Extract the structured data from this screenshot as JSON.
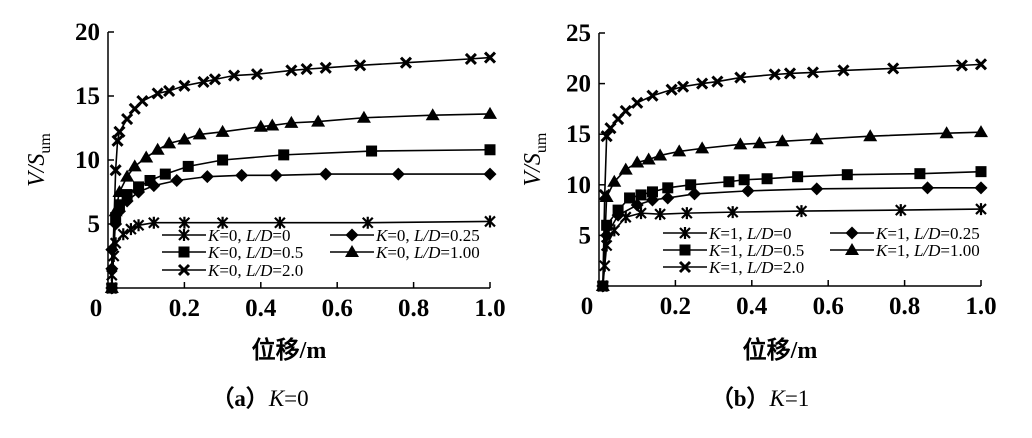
{
  "chart_data": [
    {
      "type": "line",
      "caption_prefix": "（a）",
      "caption_var": "K",
      "caption_val": "=0",
      "xlabel": "位移/m",
      "ylabel_main": "V/S",
      "ylabel_sub": "um",
      "xlim": [
        0,
        1.0
      ],
      "ylim": [
        0,
        20
      ],
      "xticks": [
        "0",
        "0.2",
        "0.4",
        "0.6",
        "0.8",
        "1.0"
      ],
      "yticks": [
        "5",
        "10",
        "15",
        "20"
      ],
      "grid": false,
      "legend_placement": "bottom-right",
      "series": [
        {
          "name": "K=0, L/D=0",
          "k": "=0, ",
          "ld": "=0",
          "marker": "asterisk",
          "x": [
            0.01,
            0.01,
            0.015,
            0.02,
            0.04,
            0.06,
            0.08,
            0.12,
            0.2,
            0.3,
            0.45,
            0.68,
            1.0
          ],
          "y": [
            0,
            1,
            2.5,
            3.5,
            4.2,
            4.6,
            4.9,
            5.1,
            5.1,
            5.1,
            5.1,
            5.1,
            5.2
          ]
        },
        {
          "name": "K=0, L/D=0.25",
          "k": "=0, ",
          "ld": "=0.25",
          "marker": "diamond",
          "x": [
            0.01,
            0.01,
            0.01,
            0.02,
            0.03,
            0.05,
            0.08,
            0.12,
            0.18,
            0.26,
            0.35,
            0.44,
            0.57,
            0.76,
            1.0
          ],
          "y": [
            0,
            1.5,
            3,
            5,
            6,
            6.8,
            7.5,
            8.0,
            8.4,
            8.7,
            8.8,
            8.8,
            8.9,
            8.9,
            8.9
          ]
        },
        {
          "name": "K=0, L/D=0.5",
          "k": "=0, ",
          "ld": "=0.5",
          "marker": "square",
          "x": [
            0.01,
            0.02,
            0.03,
            0.05,
            0.08,
            0.11,
            0.15,
            0.21,
            0.3,
            0.46,
            0.69,
            1.0
          ],
          "y": [
            0,
            5.5,
            6.5,
            7.3,
            7.9,
            8.4,
            8.9,
            9.5,
            10.0,
            10.4,
            10.7,
            10.8
          ]
        },
        {
          "name": "K=0, L/D=1.00",
          "k": "=0, ",
          "ld": "=1.00",
          "marker": "triangle",
          "x": [
            0.01,
            0.02,
            0.03,
            0.05,
            0.07,
            0.1,
            0.13,
            0.16,
            0.2,
            0.24,
            0.3,
            0.4,
            0.43,
            0.48,
            0.55,
            0.67,
            0.85,
            1.0
          ],
          "y": [
            0,
            6,
            7.5,
            8.7,
            9.5,
            10.2,
            10.8,
            11.3,
            11.6,
            12.0,
            12.2,
            12.6,
            12.7,
            12.9,
            13.0,
            13.3,
            13.5,
            13.6
          ]
        },
        {
          "name": "K=0, L/D=2.0",
          "k": "=0, ",
          "ld": "=2.0",
          "marker": "x",
          "x": [
            0.01,
            0.02,
            0.025,
            0.03,
            0.05,
            0.07,
            0.09,
            0.13,
            0.16,
            0.2,
            0.25,
            0.28,
            0.33,
            0.39,
            0.48,
            0.52,
            0.57,
            0.66,
            0.78,
            0.95,
            1.0
          ],
          "y": [
            0,
            9.2,
            11.5,
            12.2,
            13.2,
            14.0,
            14.6,
            15.2,
            15.4,
            15.8,
            16.1,
            16.3,
            16.6,
            16.7,
            17.0,
            17.1,
            17.2,
            17.4,
            17.6,
            17.9,
            18.0
          ]
        }
      ]
    },
    {
      "type": "line",
      "caption_prefix": "（b）",
      "caption_var": "K",
      "caption_val": "=1",
      "xlabel": "位移/m",
      "ylabel_main": "V/S",
      "ylabel_sub": "um",
      "xlim": [
        0,
        1.0
      ],
      "ylim": [
        0,
        25
      ],
      "xticks": [
        "0",
        "0.2",
        "0.4",
        "0.6",
        "0.8",
        "1.0"
      ],
      "yticks": [
        "5",
        "10",
        "15",
        "20",
        "25"
      ],
      "grid": false,
      "legend_placement": "bottom-right",
      "series": [
        {
          "name": "K=1, L/D=0",
          "k": "=1, ",
          "ld": "=0",
          "marker": "asterisk",
          "x": [
            0.01,
            0.015,
            0.02,
            0.04,
            0.07,
            0.11,
            0.16,
            0.23,
            0.35,
            0.53,
            0.79,
            1.0
          ],
          "y": [
            0,
            2,
            4,
            5.5,
            6.8,
            7.2,
            7.1,
            7.2,
            7.3,
            7.4,
            7.5,
            7.6
          ]
        },
        {
          "name": "K=1, L/D=0.25",
          "k": "=1, ",
          "ld": "=0.25",
          "marker": "diamond",
          "x": [
            0.01,
            0.02,
            0.05,
            0.1,
            0.14,
            0.18,
            0.25,
            0.39,
            0.57,
            0.86,
            1.0
          ],
          "y": [
            0,
            5,
            7,
            8,
            8.5,
            8.7,
            9.1,
            9.4,
            9.6,
            9.7,
            9.7
          ]
        },
        {
          "name": "K=1, L/D=0.5",
          "k": "=1, ",
          "ld": "=0.5",
          "marker": "square",
          "x": [
            0.01,
            0.02,
            0.05,
            0.08,
            0.11,
            0.14,
            0.18,
            0.24,
            0.34,
            0.38,
            0.44,
            0.52,
            0.65,
            0.84,
            1.0
          ],
          "y": [
            0,
            6,
            7.5,
            8.7,
            9.0,
            9.3,
            9.7,
            10.0,
            10.3,
            10.5,
            10.6,
            10.8,
            11.0,
            11.1,
            11.3
          ]
        },
        {
          "name": "K=1, L/D=1.00",
          "k": "=1, ",
          "ld": "=1.00",
          "marker": "triangle",
          "x": [
            0.01,
            0.02,
            0.04,
            0.07,
            0.1,
            0.13,
            0.16,
            0.21,
            0.27,
            0.37,
            0.42,
            0.48,
            0.57,
            0.71,
            0.91,
            1.0
          ],
          "y": [
            0,
            8.8,
            10.3,
            11.5,
            12.2,
            12.5,
            12.9,
            13.3,
            13.6,
            14.0,
            14.1,
            14.3,
            14.5,
            14.8,
            15.1,
            15.2
          ]
        },
        {
          "name": "K=1, L/D=2.0",
          "k": "=1, ",
          "ld": "=2.0",
          "marker": "x",
          "x": [
            0.01,
            0.015,
            0.02,
            0.03,
            0.05,
            0.07,
            0.1,
            0.14,
            0.19,
            0.22,
            0.27,
            0.31,
            0.37,
            0.46,
            0.5,
            0.56,
            0.64,
            0.77,
            0.95,
            1.0
          ],
          "y": [
            0,
            9,
            14.8,
            15.6,
            16.5,
            17.3,
            18.1,
            18.8,
            19.4,
            19.7,
            20.0,
            20.2,
            20.6,
            20.9,
            21.0,
            21.1,
            21.3,
            21.5,
            21.8,
            21.9
          ]
        }
      ]
    }
  ]
}
